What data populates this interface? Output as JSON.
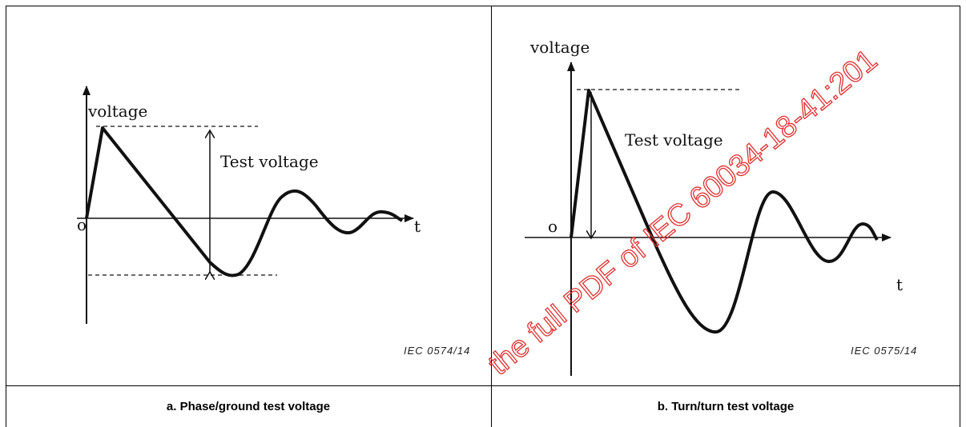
{
  "figures": [
    {
      "y_label": "voltage",
      "annotation": "Test voltage",
      "origin": "o",
      "x_label": "t",
      "reference": "IEC   0574/14",
      "caption": "a. Phase/ground test voltage"
    },
    {
      "y_label": "voltage",
      "annotation": "Test voltage",
      "origin": "o",
      "x_label": "t",
      "reference": "IEC   0575/14",
      "caption": "b. Turn/turn test voltage"
    }
  ],
  "watermark": "the full PDF of IEC 60034-18-41:201"
}
